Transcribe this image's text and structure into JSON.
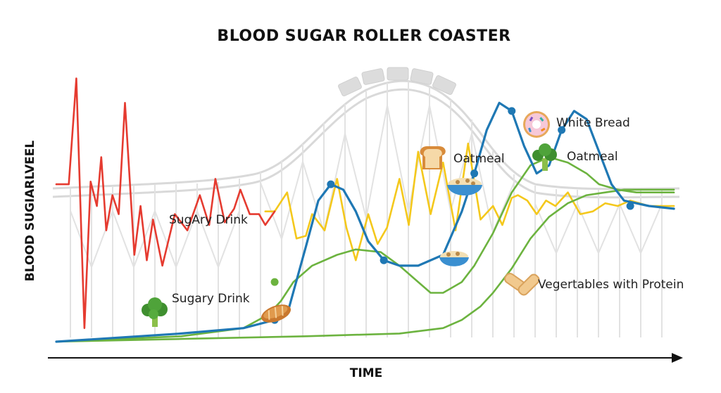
{
  "chart_data": {
    "type": "line",
    "title": "BLOOD SUGAR ROLLER COASTER",
    "xlabel": "TIME",
    "ylabel": "BLOOD SUGIARLVEEL",
    "xlim": [
      0,
      100
    ],
    "ylim": [
      0,
      100
    ],
    "grid": false,
    "series": [
      {
        "color": "#e53b30",
        "x": [
          0,
          2,
          3.2,
          4.5,
          5.5,
          6.5,
          7.2,
          8,
          9,
          10,
          11,
          12.5,
          13.5,
          14.5,
          15.5,
          17,
          19,
          21,
          23,
          24.5,
          25.5,
          27,
          28.5,
          29.5,
          31,
          32.5,
          33.5,
          35
        ],
        "y": [
          58,
          58,
          97,
          5,
          59,
          50,
          68,
          41,
          54,
          47,
          88,
          32,
          50,
          30,
          45,
          28,
          47,
          41,
          54,
          43,
          60,
          44,
          49,
          56,
          47,
          47,
          43,
          48
        ]
      },
      {
        "color": "#f4c81c",
        "x": [
          33.5,
          35,
          37,
          38.5,
          40,
          41,
          43,
          45,
          46.5,
          48,
          50,
          51.5,
          53,
          55,
          56.5,
          58,
          60,
          62,
          64,
          66,
          68,
          70,
          71.5,
          73,
          74,
          75.5,
          77,
          78.5,
          80,
          82,
          84,
          86,
          88,
          90,
          92,
          95,
          99
        ],
        "y": [
          48,
          48,
          55,
          38,
          39,
          47,
          41,
          60,
          42,
          30,
          47,
          36,
          42,
          60,
          43,
          70,
          47,
          66,
          41,
          73,
          45,
          50,
          43,
          53,
          54,
          52,
          47,
          52,
          50,
          55,
          47,
          48,
          51,
          50,
          52,
          50,
          50
        ]
      },
      {
        "color": "#1f78b4",
        "x": [
          0,
          20,
          30,
          35,
          37,
          40,
          42,
          44,
          46,
          48,
          50,
          52.5,
          55,
          58,
          62,
          65,
          67,
          69,
          71,
          73,
          75,
          77,
          79,
          81,
          83,
          85,
          87,
          89,
          91,
          95,
          99
        ],
        "y": [
          0,
          3,
          5,
          8,
          10,
          35,
          52,
          58,
          56,
          48,
          37,
          30,
          28,
          28,
          32,
          48,
          62,
          78,
          88,
          85,
          72,
          62,
          65,
          78,
          85,
          82,
          70,
          58,
          52,
          50,
          49
        ]
      },
      {
        "color": "#6cb33f",
        "x": [
          0,
          20,
          30,
          34,
          36,
          38,
          41,
          45,
          48,
          52,
          55,
          58,
          60,
          62,
          65,
          67,
          70,
          73,
          76,
          79,
          82,
          85,
          87,
          90,
          93,
          96,
          99
        ],
        "y": [
          0,
          2,
          5,
          10,
          15,
          22,
          28,
          32,
          34,
          33,
          28,
          22,
          18,
          18,
          22,
          28,
          40,
          55,
          65,
          68,
          66,
          62,
          58,
          56,
          55,
          55,
          55
        ]
      },
      {
        "color": "#6cb33f",
        "x": [
          0,
          20,
          40,
          55,
          62,
          65,
          68,
          70,
          73,
          76,
          79,
          82,
          85,
          88,
          91,
          94,
          97,
          99
        ],
        "y": [
          0,
          1,
          2,
          3,
          5,
          8,
          13,
          18,
          27,
          38,
          46,
          51,
          54,
          55,
          56,
          56,
          56,
          56
        ]
      }
    ],
    "markers": [
      {
        "series": 2,
        "x": 35,
        "y": 8
      },
      {
        "series": 2,
        "x": 44,
        "y": 58
      },
      {
        "series": 2,
        "x": 52.5,
        "y": 30
      },
      {
        "series": 2,
        "x": 67,
        "y": 62
      },
      {
        "series": 2,
        "x": 73,
        "y": 85
      },
      {
        "series": 2,
        "x": 81,
        "y": 78
      },
      {
        "series": 2,
        "x": 92,
        "y": 50
      },
      {
        "series": 3,
        "x": 35,
        "y": 22
      }
    ],
    "annotations": [
      {
        "text": "SugAry Drink",
        "icon": "none"
      },
      {
        "text": "Sugary Drink",
        "icon": "broccoli-icon"
      },
      {
        "text": "Oatmeal",
        "icon": "bread-icon"
      },
      {
        "text": "White Bread",
        "icon": "donut-icon"
      },
      {
        "text": "Oatmeal",
        "icon": "broccoli-icon"
      },
      {
        "text": "Vegertables with Protein",
        "icon": "bread-stick-icon"
      }
    ],
    "extra_icons": [
      "bread-loaf-icon",
      "oatmeal-bowl-icon",
      "oatmeal-bowl-icon"
    ]
  }
}
